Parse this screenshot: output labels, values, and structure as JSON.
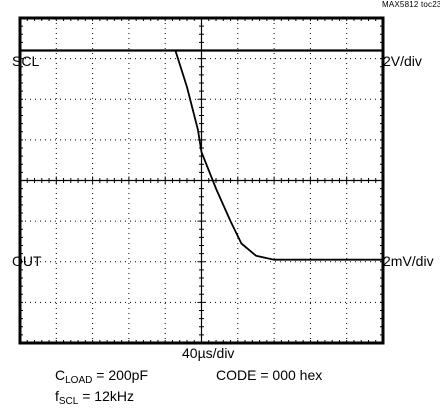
{
  "figure_code": "MAX5812 toc23",
  "channels": {
    "top": {
      "name": "SCL",
      "scale": "2V/div"
    },
    "bottom": {
      "name": "OUT",
      "scale": "2mV/div"
    }
  },
  "time_scale": "40µs/div",
  "conditions": {
    "load": {
      "prefix": "C",
      "sub": "LOAD",
      "rest": " = 200pF"
    },
    "code": "CODE = 000 hex",
    "fscl": {
      "prefix": "f",
      "sub": "SCL",
      "rest": " = 12kHz"
    }
  },
  "chart_data": {
    "type": "line",
    "title": "",
    "xlabel": "40µs/div",
    "ylabel": "",
    "grid": true,
    "divisions": {
      "x": 10,
      "y": 8
    },
    "xlim": [
      0,
      10
    ],
    "ylim": [
      0,
      8
    ],
    "colors": {
      "trace": "#000000",
      "frame": "#000000",
      "grid": "#000000"
    },
    "series": [
      {
        "name": "SCL",
        "x": [
          0,
          4.28,
          10
        ],
        "y": [
          7.2,
          7.2,
          7.2
        ]
      },
      {
        "name": "OUT",
        "x": [
          0,
          4.28,
          4.6,
          4.9,
          5.0,
          5.4,
          5.8,
          6.1,
          6.5,
          7.0,
          10
        ],
        "y": [
          7.2,
          7.2,
          6.3,
          5.25,
          4.7,
          3.8,
          3.0,
          2.45,
          2.15,
          2.05,
          2.05
        ]
      }
    ]
  }
}
